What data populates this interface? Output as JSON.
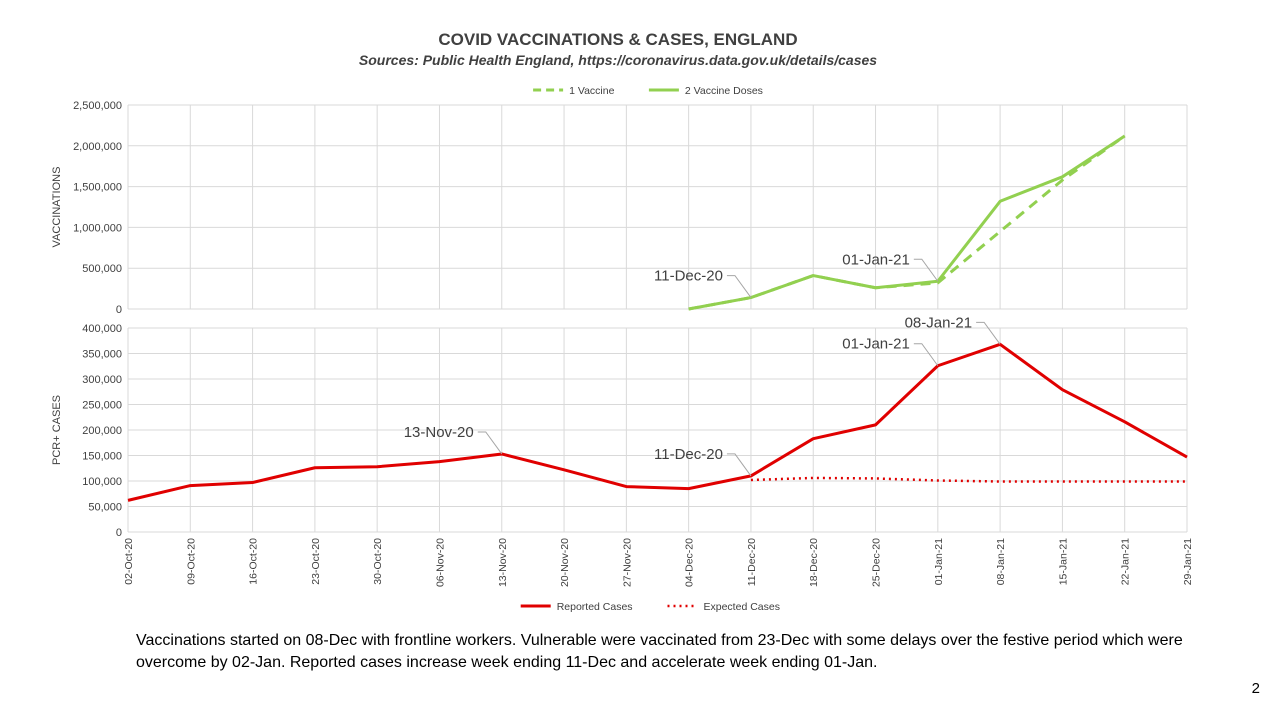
{
  "title": "COVID VACCINATIONS & CASES, ENGLAND",
  "subtitle": "Sources: Public Health England, https://coronavirus.data.gov.uk/details/cases",
  "note": "Vaccinations started on 08-Dec with frontline workers. Vulnerable were vaccinated from 23-Dec with some delays over the festive period which were overcome by 02-Jan. Reported cases increase week ending 11-Dec and accelerate week ending 01-Jan.",
  "page_number": "2",
  "colors": {
    "green": "#92d050",
    "red": "#e00000",
    "grid": "#d9d9d9",
    "text": "#404040"
  },
  "chart_data": [
    {
      "type": "line",
      "ylabel": "VACCINATIONS",
      "ylim": [
        0,
        2500000
      ],
      "yticks": [
        0,
        500000,
        1000000,
        1500000,
        2000000,
        2500000
      ],
      "ytick_labels": [
        "0",
        "500,000",
        "1,000,000",
        "1,500,000",
        "2,000,000",
        "2,500,000"
      ],
      "x": [
        "02-Oct-20",
        "09-Oct-20",
        "16-Oct-20",
        "23-Oct-20",
        "30-Oct-20",
        "06-Nov-20",
        "13-Nov-20",
        "20-Nov-20",
        "27-Nov-20",
        "04-Dec-20",
        "11-Dec-20",
        "18-Dec-20",
        "25-Dec-20",
        "01-Jan-21",
        "08-Jan-21",
        "15-Jan-21",
        "22-Jan-21",
        "29-Jan-21"
      ],
      "legend_position": "top",
      "series": [
        {
          "name": "1 Vaccine",
          "style": "dashed",
          "color": "#92d050",
          "values": [
            null,
            null,
            null,
            null,
            null,
            null,
            null,
            null,
            null,
            0,
            140000,
            410000,
            260000,
            320000,
            950000,
            1580000,
            2120000,
            null
          ]
        },
        {
          "name": "2 Vaccine Doses",
          "style": "solid",
          "color": "#92d050",
          "values": [
            null,
            null,
            null,
            null,
            null,
            null,
            null,
            null,
            null,
            0,
            140000,
            410000,
            260000,
            340000,
            1320000,
            1620000,
            2120000,
            null
          ]
        }
      ],
      "annotations": [
        {
          "text": "11-Dec-20",
          "x": "11-Dec-20",
          "y": 140000
        },
        {
          "text": "01-Jan-21",
          "x": "01-Jan-21",
          "y": 340000
        }
      ]
    },
    {
      "type": "line",
      "ylabel": "PCR+ CASES",
      "ylim": [
        0,
        400000
      ],
      "yticks": [
        0,
        50000,
        100000,
        150000,
        200000,
        250000,
        300000,
        350000,
        400000
      ],
      "ytick_labels": [
        "0",
        "50,000",
        "100,000",
        "150,000",
        "200,000",
        "250,000",
        "300,000",
        "350,000",
        "400,000"
      ],
      "x": [
        "02-Oct-20",
        "09-Oct-20",
        "16-Oct-20",
        "23-Oct-20",
        "30-Oct-20",
        "06-Nov-20",
        "13-Nov-20",
        "20-Nov-20",
        "27-Nov-20",
        "04-Dec-20",
        "11-Dec-20",
        "18-Dec-20",
        "25-Dec-20",
        "01-Jan-21",
        "08-Jan-21",
        "15-Jan-21",
        "22-Jan-21",
        "29-Jan-21"
      ],
      "legend_position": "bottom",
      "series": [
        {
          "name": "Reported Cases",
          "style": "solid",
          "color": "#e00000",
          "values": [
            62000,
            91000,
            97000,
            126000,
            128000,
            138000,
            153000,
            122000,
            89000,
            85000,
            110000,
            183000,
            210000,
            326000,
            368000,
            279000,
            216000,
            147000
          ]
        },
        {
          "name": "Expected Cases",
          "style": "dotted",
          "color": "#e00000",
          "values": [
            null,
            null,
            null,
            null,
            null,
            null,
            null,
            null,
            null,
            null,
            102000,
            106000,
            105000,
            101000,
            99000,
            99000,
            99000,
            99000
          ]
        }
      ],
      "annotations": [
        {
          "text": "13-Nov-20",
          "x": "13-Nov-20",
          "y": 153000
        },
        {
          "text": "11-Dec-20",
          "x": "11-Dec-20",
          "y": 110000
        },
        {
          "text": "01-Jan-21",
          "x": "01-Jan-21",
          "y": 326000
        },
        {
          "text": "08-Jan-21",
          "x": "08-Jan-21",
          "y": 368000
        }
      ]
    }
  ]
}
